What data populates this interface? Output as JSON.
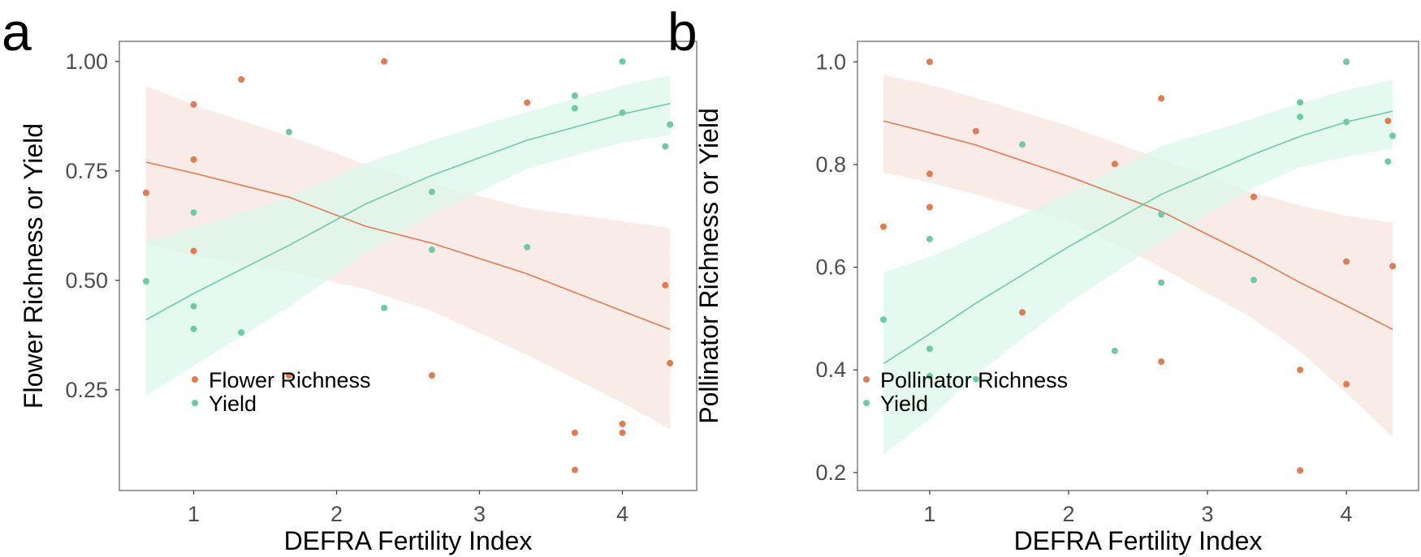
{
  "colors": {
    "richness": "#e07b54",
    "yield": "#6fcaa4",
    "richness_band": "#f6e5dc",
    "yield_band": "#d9f6ea",
    "frame": "#7f7f7f",
    "tick_text": "#4d4d4d"
  },
  "chart_data": [
    {
      "type": "scatter",
      "panel_label": "a",
      "title": "",
      "xlabel": "DEFRA Fertility Index",
      "ylabel": "Flower Richness or Yield",
      "xlim": [
        0.48,
        4.52
      ],
      "ylim": [
        0.02,
        1.046
      ],
      "xticks": [
        1,
        2,
        3,
        4
      ],
      "xtick_labels": [
        "1",
        "2",
        "3",
        "4"
      ],
      "yticks": [
        0.25,
        0.5,
        0.75,
        1.0
      ],
      "ytick_labels": [
        "0.25",
        "0.50",
        "0.75",
        "1.00"
      ],
      "grid": false,
      "legend": {
        "placement": "bottom-left",
        "entries": [
          "Flower Richness",
          "Yield"
        ]
      },
      "series": [
        {
          "name": "Flower Richness",
          "color_key": "richness",
          "points": [
            [
              0.667,
              0.7
            ],
            [
              1.0,
              0.902
            ],
            [
              1.0,
              0.776
            ],
            [
              1.0,
              0.567
            ],
            [
              1.333,
              0.959
            ],
            [
              1.667,
              0.283
            ],
            [
              2.333,
              1.0
            ],
            [
              2.667,
              0.283
            ],
            [
              3.333,
              0.906
            ],
            [
              3.667,
              0.152
            ],
            [
              3.667,
              0.067
            ],
            [
              4.0,
              0.172
            ],
            [
              4.0,
              0.152
            ],
            [
              4.3,
              0.489
            ],
            [
              4.333,
              0.311
            ]
          ],
          "fit": {
            "x": [
              0.667,
              1.0,
              1.667,
              2.2,
              2.667,
              3.333,
              4.0,
              4.333
            ],
            "y": [
              0.77,
              0.745,
              0.69,
              0.624,
              0.585,
              0.515,
              0.43,
              0.388
            ],
            "lower": [
              0.585,
              0.556,
              0.52,
              0.48,
              0.43,
              0.33,
              0.22,
              0.16
            ],
            "upper": [
              0.945,
              0.9,
              0.83,
              0.765,
              0.72,
              0.665,
              0.635,
              0.62
            ]
          }
        },
        {
          "name": "Yield",
          "color_key": "yield",
          "points": [
            [
              0.667,
              0.498
            ],
            [
              1.0,
              0.655
            ],
            [
              1.0,
              0.441
            ],
            [
              1.0,
              0.389
            ],
            [
              1.333,
              0.381
            ],
            [
              1.667,
              0.839
            ],
            [
              2.333,
              0.437
            ],
            [
              2.667,
              0.702
            ],
            [
              2.667,
              0.57
            ],
            [
              3.333,
              0.576
            ],
            [
              3.667,
              0.922
            ],
            [
              3.667,
              0.893
            ],
            [
              4.0,
              1.0
            ],
            [
              4.0,
              0.883
            ],
            [
              4.3,
              0.806
            ],
            [
              4.333,
              0.856
            ]
          ],
          "fit": {
            "x": [
              0.667,
              1.0,
              1.667,
              2.2,
              2.667,
              3.333,
              4.0,
              4.333
            ],
            "y": [
              0.41,
              0.47,
              0.58,
              0.674,
              0.74,
              0.82,
              0.88,
              0.904
            ],
            "lower": [
              0.235,
              0.305,
              0.44,
              0.56,
              0.65,
              0.755,
              0.815,
              0.832
            ],
            "upper": [
              0.59,
              0.62,
              0.69,
              0.767,
              0.82,
              0.885,
              0.945,
              0.968
            ]
          }
        }
      ]
    },
    {
      "type": "scatter",
      "panel_label": "b",
      "title": "",
      "xlabel": "DEFRA Fertility Index",
      "ylabel": "Pollinator Richness or Yield",
      "xlim": [
        0.48,
        4.52
      ],
      "ylim": [
        0.165,
        1.04
      ],
      "xticks": [
        1,
        2,
        3,
        4
      ],
      "xtick_labels": [
        "1",
        "2",
        "3",
        "4"
      ],
      "yticks": [
        0.2,
        0.4,
        0.6,
        0.8,
        1.0
      ],
      "ytick_labels": [
        "0.2",
        "0.4",
        "0.6",
        "0.8",
        "1.0"
      ],
      "grid": false,
      "legend": {
        "placement": "bottom-left",
        "entries": [
          "Pollinator Richness",
          "Yield"
        ]
      },
      "series": [
        {
          "name": "Pollinator Richness",
          "color_key": "richness",
          "points": [
            [
              0.667,
              0.679
            ],
            [
              1.0,
              1.0
            ],
            [
              1.0,
              0.782
            ],
            [
              1.0,
              0.717
            ],
            [
              1.333,
              0.865
            ],
            [
              1.667,
              0.512
            ],
            [
              2.333,
              0.801
            ],
            [
              2.667,
              0.929
            ],
            [
              2.667,
              0.416
            ],
            [
              3.333,
              0.737
            ],
            [
              3.667,
              0.4
            ],
            [
              3.667,
              0.204
            ],
            [
              4.0,
              0.611
            ],
            [
              4.0,
              0.372
            ],
            [
              4.3,
              0.885
            ],
            [
              4.333,
              0.602
            ]
          ],
          "fit": {
            "x": [
              0.667,
              1.0,
              1.333,
              2.0,
              2.667,
              3.333,
              3.667,
              4.0,
              4.333
            ],
            "y": [
              0.885,
              0.862,
              0.838,
              0.777,
              0.709,
              0.619,
              0.57,
              0.525,
              0.479
            ],
            "lower": [
              0.785,
              0.765,
              0.742,
              0.69,
              0.6,
              0.499,
              0.436,
              0.355,
              0.27
            ],
            "upper": [
              0.975,
              0.955,
              0.93,
              0.875,
              0.81,
              0.745,
              0.72,
              0.7,
              0.687
            ]
          }
        },
        {
          "name": "Yield",
          "color_key": "yield",
          "points": [
            [
              0.667,
              0.498
            ],
            [
              1.0,
              0.655
            ],
            [
              1.0,
              0.441
            ],
            [
              1.0,
              0.388
            ],
            [
              1.333,
              0.382
            ],
            [
              1.667,
              0.839
            ],
            [
              2.333,
              0.437
            ],
            [
              2.667,
              0.703
            ],
            [
              2.667,
              0.57
            ],
            [
              3.333,
              0.575
            ],
            [
              3.667,
              0.921
            ],
            [
              3.667,
              0.893
            ],
            [
              4.0,
              1.0
            ],
            [
              4.0,
              0.883
            ],
            [
              4.3,
              0.806
            ],
            [
              4.333,
              0.856
            ]
          ],
          "fit": {
            "x": [
              0.667,
              1.0,
              1.333,
              2.0,
              2.667,
              3.333,
              3.667,
              4.0,
              4.333
            ],
            "y": [
              0.412,
              0.47,
              0.53,
              0.64,
              0.742,
              0.82,
              0.855,
              0.883,
              0.904
            ],
            "lower": [
              0.235,
              0.305,
              0.39,
              0.53,
              0.65,
              0.755,
              0.795,
              0.815,
              0.831
            ],
            "upper": [
              0.59,
              0.62,
              0.66,
              0.745,
              0.836,
              0.89,
              0.92,
              0.945,
              0.965
            ]
          }
        }
      ]
    }
  ]
}
